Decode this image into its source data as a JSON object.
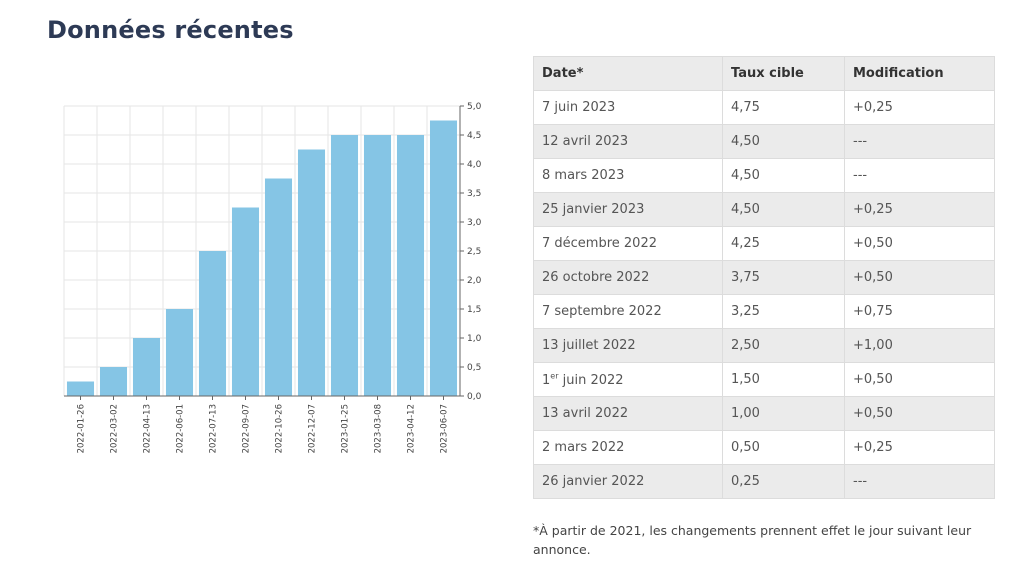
{
  "title": "Données récentes",
  "chart_data": {
    "type": "bar",
    "categories": [
      "2022-01-26",
      "2022-03-02",
      "2022-04-13",
      "2022-06-01",
      "2022-07-13",
      "2022-09-07",
      "2022-10-26",
      "2022-12-07",
      "2023-01-25",
      "2023-03-08",
      "2023-04-12",
      "2023-06-07"
    ],
    "values": [
      0.25,
      0.5,
      1.0,
      1.5,
      2.5,
      3.25,
      3.75,
      4.25,
      4.5,
      4.5,
      4.5,
      4.75
    ],
    "ylim": [
      0,
      5
    ],
    "yticks": [
      "0,0",
      "0,5",
      "1,0",
      "1,5",
      "2,0",
      "2,5",
      "3,0",
      "3,5",
      "4,0",
      "4,5",
      "5,0"
    ],
    "yaxis_position": "right",
    "grid": true,
    "bar_color": "#85c5e5"
  },
  "table": {
    "headers": [
      "Date*",
      "Taux cible",
      "Modification"
    ],
    "rows": [
      [
        "7 juin 2023",
        "4,75",
        "+0,25"
      ],
      [
        "12 avril 2023",
        "4,50",
        "---"
      ],
      [
        "8 mars 2023",
        "4,50",
        "---"
      ],
      [
        "25 janvier 2023",
        "4,50",
        "+0,25"
      ],
      [
        "7 décembre 2022",
        "4,25",
        "+0,50"
      ],
      [
        "26 octobre 2022",
        "3,75",
        "+0,50"
      ],
      [
        "7 septembre 2022",
        "3,25",
        "+0,75"
      ],
      [
        "13 juillet 2022",
        "2,50",
        "+1,00"
      ],
      [
        "1 juin 2022",
        "1,50",
        "+0,50"
      ],
      [
        "13 avril 2022",
        "1,00",
        "+0,50"
      ],
      [
        "2 mars 2022",
        "0,50",
        "+0,25"
      ],
      [
        "26 janvier 2022",
        "0,25",
        "---"
      ]
    ],
    "row_sup": {
      "8": "er"
    }
  },
  "footnote": "*À partir de 2021, les changements prennent effet le jour suivant leur annonce."
}
